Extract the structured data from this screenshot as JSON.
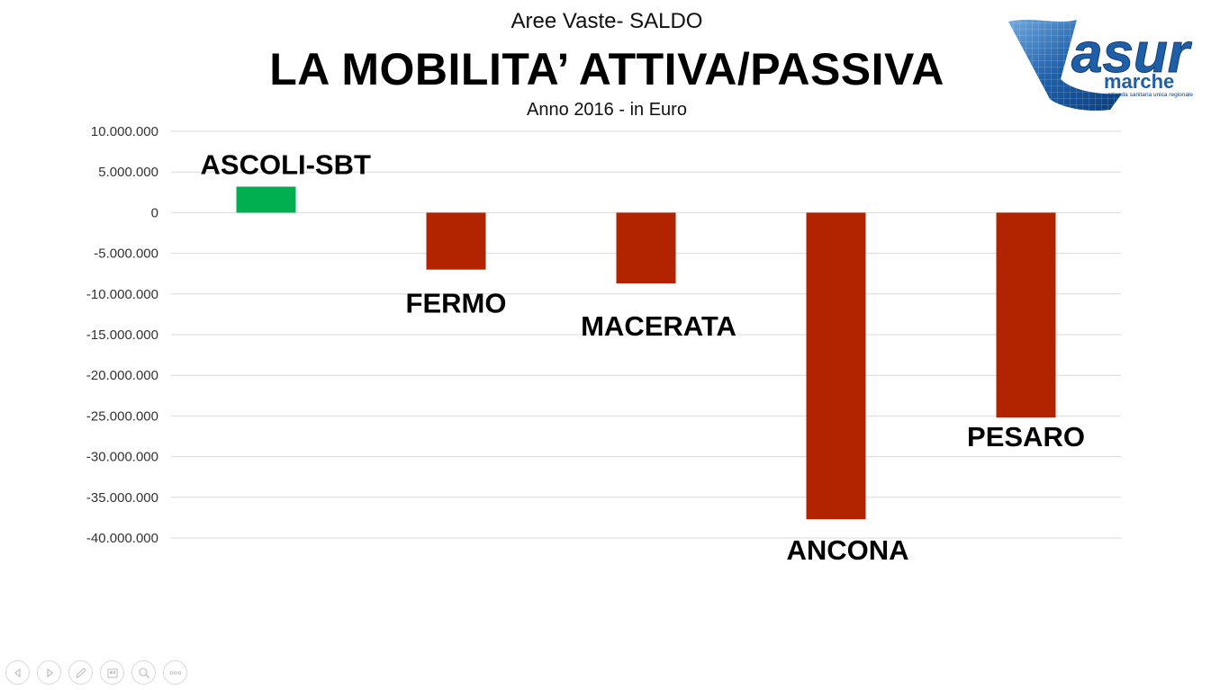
{
  "header": {
    "subtitle_top": "Aree Vaste- SALDO",
    "title": "LA MOBILITA’ ATTIVA/PASSIVA",
    "subtitle_bottom": "Anno 2016 - in Euro"
  },
  "logo": {
    "brand": "asur",
    "name": "marche",
    "tagline": "azienda sanitaria unica regionale",
    "colors": {
      "primary": "#1f5fa8",
      "dark": "#0b3d7a",
      "light": "#6fa8dc"
    }
  },
  "chart_data": {
    "type": "bar",
    "categories": [
      "ASCOLI-SBT",
      "FERMO",
      "MACERATA",
      "ANCONA",
      "PESARO"
    ],
    "values": [
      3200000,
      -7000000,
      -8700000,
      -37700000,
      -25200000
    ],
    "colors": [
      "#00b050",
      "#b22400",
      "#b22400",
      "#b22400",
      "#b22400"
    ],
    "yticks": [
      "10.000.000",
      "5.000.000",
      "0",
      "-5.000.000",
      "-10.000.000",
      "-15.000.000",
      "-20.000.000",
      "-25.000.000",
      "-30.000.000",
      "-35.000.000",
      "-40.000.000"
    ],
    "ytick_values": [
      10000000,
      5000000,
      0,
      -5000000,
      -10000000,
      -15000000,
      -20000000,
      -25000000,
      -30000000,
      -35000000,
      -40000000
    ],
    "ylim": [
      -40000000,
      10000000
    ],
    "grid": true,
    "legend": false,
    "xlabel": "",
    "ylabel": ""
  },
  "nav": {
    "icons": [
      "previous-icon",
      "next-icon",
      "pen-icon",
      "slides-icon",
      "zoom-icon",
      "more-icon"
    ]
  }
}
